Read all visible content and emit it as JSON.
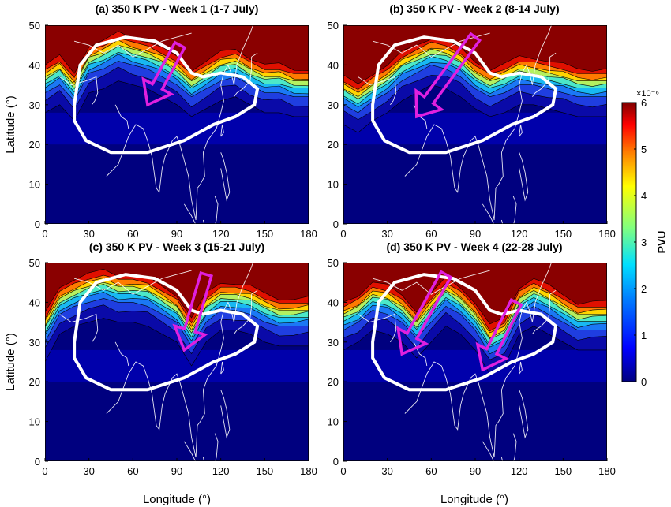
{
  "figure": {
    "colorbar": {
      "label": "PVU",
      "exponent": "×10⁻⁶",
      "ticks": [
        "0",
        "1",
        "2",
        "3",
        "4",
        "5",
        "6"
      ],
      "range": [
        0,
        6
      ],
      "colors": [
        "#00007f",
        "#0000d0",
        "#0040ff",
        "#0090ff",
        "#00d8ff",
        "#40ffc0",
        "#90ff70",
        "#e0ff20",
        "#ffd000",
        "#ff8800",
        "#ff3800",
        "#d00000",
        "#7f0000"
      ]
    },
    "axis_labels": {
      "x": "Longitude (°)",
      "y": "Latitude (°)"
    },
    "annotation_colors": {
      "anticyclone_contour": "#ffffff",
      "intrusion_arrow": "#e020e0",
      "coastline": "#ffffff"
    }
  },
  "chart_data": [
    {
      "type": "heatmap",
      "title": "(a) 350 K PV - Week 1 (1-7 July)",
      "xlabel": "",
      "ylabel": "Latitude (°)",
      "xlim": [
        0,
        180
      ],
      "ylim": [
        0,
        50
      ],
      "xticks": [
        "0",
        "30",
        "60",
        "90",
        "120",
        "150",
        "180"
      ],
      "yticks": [
        "0",
        "10",
        "20",
        "30",
        "40",
        "50"
      ],
      "pv_northern_edge": {
        "x": [
          0,
          10,
          20,
          30,
          40,
          50,
          60,
          70,
          80,
          90,
          100,
          110,
          120,
          130,
          140,
          150,
          160,
          170,
          180
        ],
        "y": [
          38,
          40,
          36,
          43,
          44,
          46,
          45,
          44,
          42,
          40,
          37,
          39,
          41,
          42,
          40,
          38,
          38,
          37,
          37
        ]
      },
      "arrows": [
        {
          "from": [
            92,
            45
          ],
          "to": [
            70,
            30
          ]
        }
      ]
    },
    {
      "type": "heatmap",
      "title": "(b) 350 K PV - Week 2 (8-14 July)",
      "xlabel": "",
      "ylabel": "",
      "xlim": [
        0,
        180
      ],
      "ylim": [
        0,
        50
      ],
      "xticks": [
        "0",
        "30",
        "60",
        "90",
        "120",
        "150",
        "180"
      ],
      "yticks": [
        "0",
        "10",
        "20",
        "30",
        "40",
        "50"
      ],
      "pv_northern_edge": {
        "x": [
          0,
          10,
          20,
          30,
          40,
          50,
          60,
          70,
          80,
          90,
          100,
          110,
          120,
          130,
          140,
          150,
          160,
          170,
          180
        ],
        "y": [
          35,
          33,
          36,
          38,
          41,
          43,
          45,
          44,
          42,
          39,
          37,
          38,
          40,
          40,
          39,
          38,
          37,
          37,
          37
        ]
      },
      "arrows": [
        {
          "from": [
            90,
            47
          ],
          "to": [
            50,
            27
          ]
        }
      ]
    },
    {
      "type": "heatmap",
      "title": "(c) 350 K PV - Week 3 (15-21 July)",
      "xlabel": "",
      "ylabel": "Latitude (°)",
      "xlim": [
        0,
        180
      ],
      "ylim": [
        0,
        50
      ],
      "xticks": [
        "0",
        "30",
        "60",
        "90",
        "120",
        "150",
        "180"
      ],
      "yticks": [
        "0",
        "10",
        "20",
        "30",
        "40",
        "50"
      ],
      "pv_northern_edge": {
        "x": [
          0,
          10,
          20,
          30,
          40,
          50,
          60,
          70,
          80,
          90,
          100,
          110,
          120,
          130,
          140,
          150,
          160,
          170,
          180
        ],
        "y": [
          35,
          42,
          44,
          45,
          46,
          45,
          45,
          44,
          42,
          40,
          34,
          40,
          43,
          43,
          42,
          40,
          39,
          39,
          39
        ]
      },
      "arrows": [
        {
          "from": [
            110,
            47
          ],
          "to": [
            95,
            28
          ]
        }
      ]
    },
    {
      "type": "heatmap",
      "title": "(d) 350 K PV - Week 4 (22-28 July)",
      "xlabel": "",
      "ylabel": "",
      "xlim": [
        0,
        180
      ],
      "ylim": [
        0,
        50
      ],
      "xticks": [
        "0",
        "30",
        "60",
        "90",
        "120",
        "150",
        "180"
      ],
      "yticks": [
        "0",
        "10",
        "20",
        "30",
        "40",
        "50"
      ],
      "pv_northern_edge": {
        "x": [
          0,
          10,
          20,
          30,
          40,
          50,
          60,
          70,
          80,
          90,
          100,
          110,
          120,
          130,
          140,
          150,
          160,
          170,
          180
        ],
        "y": [
          38,
          40,
          43,
          42,
          40,
          36,
          40,
          44,
          42,
          38,
          32,
          34,
          42,
          44,
          42,
          40,
          38,
          38,
          38
        ]
      },
      "arrows": [
        {
          "from": [
            70,
            47
          ],
          "to": [
            40,
            27
          ]
        },
        {
          "from": [
            118,
            40
          ],
          "to": [
            95,
            23
          ]
        }
      ]
    }
  ]
}
